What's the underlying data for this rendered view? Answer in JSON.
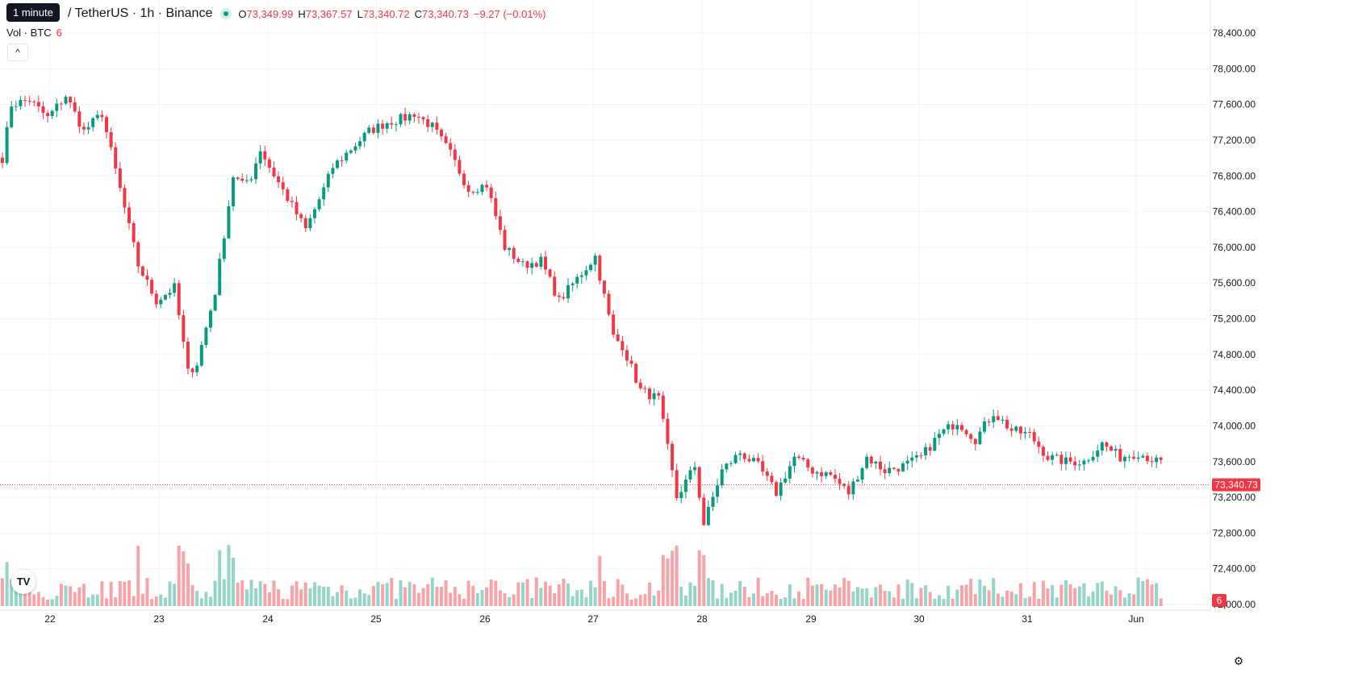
{
  "header": {
    "interval_tooltip": "1 minute",
    "symbol": "/ TetherUS · 1h · Binance",
    "open_label": "O",
    "open": "73,349.99",
    "high_label": "H",
    "high": "73,367.57",
    "low_label": "L",
    "low": "73,340.72",
    "close_label": "C",
    "close": "73,340.73",
    "change": "−9.27 (−0.01%)"
  },
  "volume_legend": {
    "label": "Vol · BTC",
    "value": "6"
  },
  "buttons": {
    "collapse": "^"
  },
  "logo_text": "TV",
  "colors": {
    "up": "#089981",
    "down": "#f23645",
    "vol_up": "#95d4c8",
    "vol_down": "#f6a4a9",
    "grid": "#f0f3fa"
  },
  "chart_data": {
    "type": "candlestick",
    "interval": "1h",
    "ylim": [
      72000,
      78600
    ],
    "price_ticks": [
      "78,400.00",
      "78,000.00",
      "77,600.00",
      "77,200.00",
      "76,800.00",
      "76,400.00",
      "76,000.00",
      "75,600.00",
      "75,200.00",
      "74,800.00",
      "74,400.00",
      "74,000.00",
      "73,600.00",
      "73,200.00",
      "72,800.00",
      "72,400.00",
      "72,000.00"
    ],
    "price_tick_values": [
      78400,
      78000,
      77600,
      77200,
      76800,
      76400,
      76000,
      75600,
      75200,
      74800,
      74400,
      74000,
      73600,
      73200,
      72800,
      72400,
      72000
    ],
    "x_ticks": [
      "22",
      "23",
      "24",
      "25",
      "26",
      "27",
      "28",
      "29",
      "30",
      "31",
      "Jun"
    ],
    "last_price": 73340.73,
    "last_price_label": "73,340.73",
    "volume_label": "6",
    "anchors_hours": [
      0,
      2,
      6,
      10,
      14,
      18,
      22,
      26,
      30,
      34,
      38,
      41,
      43,
      47,
      51,
      53,
      55,
      57,
      59,
      63,
      67,
      71,
      73,
      77,
      81,
      85,
      89,
      91,
      95,
      99,
      103,
      107,
      111,
      115,
      119,
      123,
      127,
      131,
      135,
      137,
      141,
      145,
      149,
      153,
      155,
      159,
      163,
      167,
      171,
      175,
      179,
      183,
      187,
      191,
      195,
      199,
      203,
      207,
      211,
      215,
      219,
      223,
      227,
      231,
      235,
      239,
      243,
      247,
      251,
      255,
      259,
      263,
      267,
      275,
      284
    ],
    "anchors_price": [
      77000,
      77600,
      77650,
      77450,
      77700,
      77300,
      77500,
      76650,
      75800,
      75400,
      75550,
      74600,
      74700,
      75500,
      76800,
      76700,
      76800,
      77100,
      76900,
      76550,
      76200,
      76650,
      76900,
      77100,
      77300,
      77400,
      77450,
      77500,
      77350,
      77050,
      76650,
      76700,
      76000,
      75800,
      75850,
      75400,
      75650,
      75900,
      75000,
      74900,
      74400,
      74300,
      73200,
      73550,
      72900,
      73500,
      73700,
      73550,
      73250,
      73650,
      73500,
      73450,
      73250,
      73650,
      73500,
      73550,
      73650,
      73900,
      74050,
      73850,
      74150,
      73950,
      73900,
      73650,
      73600,
      73600,
      73800,
      73650,
      73700,
      73600,
      73550,
      73600,
      73700,
      73450,
      73340.73
    ]
  }
}
